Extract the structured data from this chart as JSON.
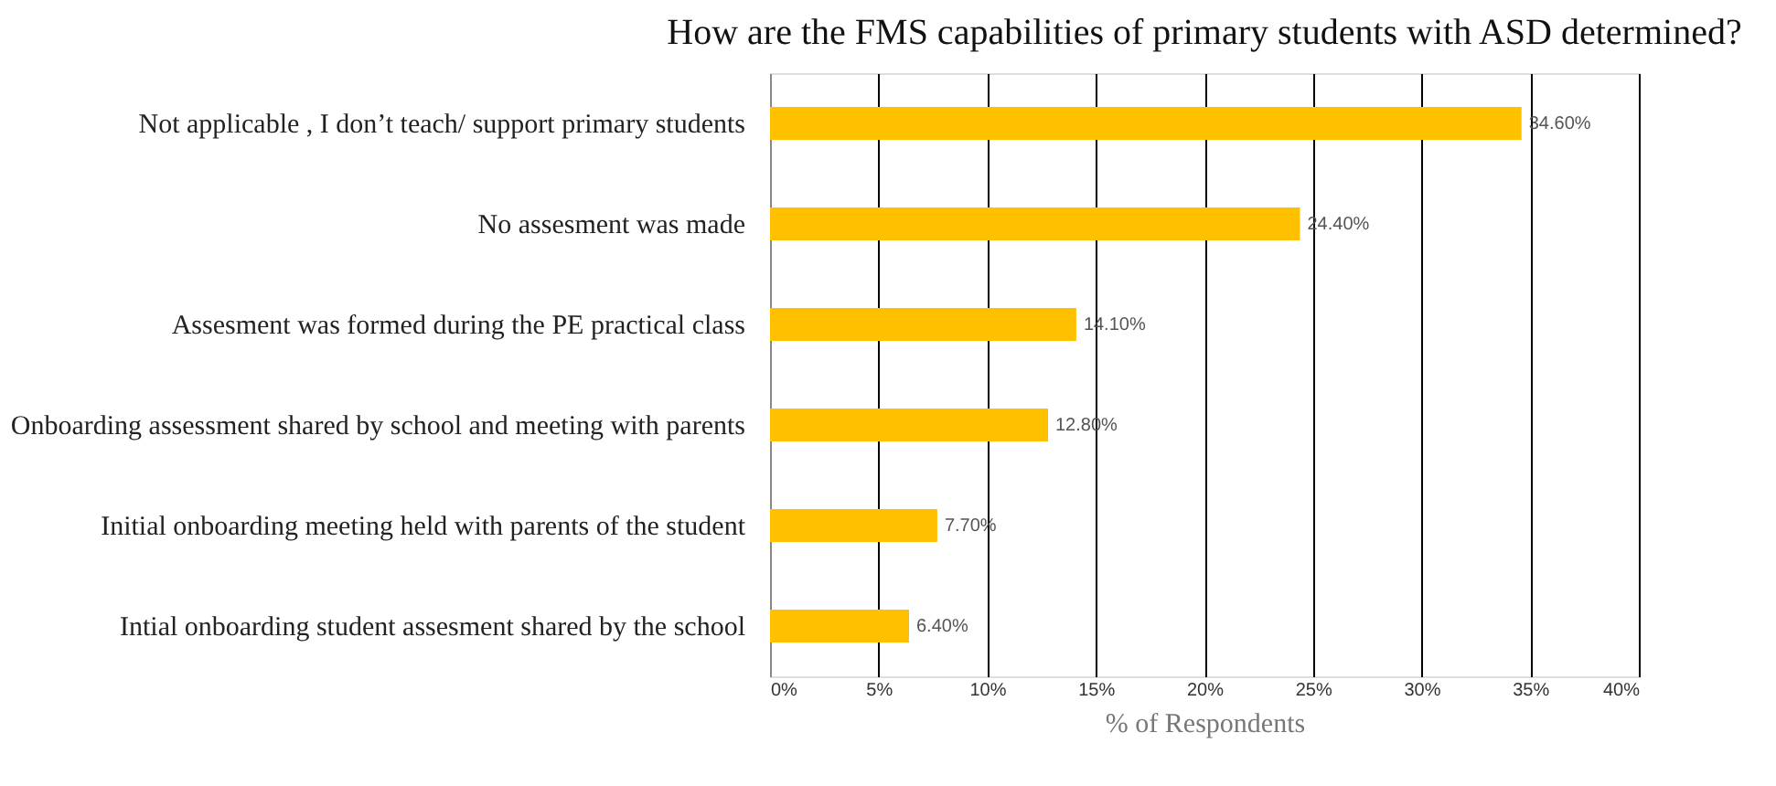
{
  "chart_data": {
    "type": "bar",
    "orientation": "horizontal",
    "title": "How are the FMS capabilities of primary students with ASD determined?",
    "xlabel": "% of Respondents",
    "categories": [
      "Not applicable , I don’t teach/ support primary students",
      "No assesment was made",
      "Assesment was formed during the PE practical class",
      "Onboarding assessment shared by school and meeting with parents",
      "Initial onboarding meeting held with parents of the student",
      "Intial onboarding student assesment shared by the school"
    ],
    "values": [
      34.6,
      24.4,
      14.1,
      12.8,
      7.7,
      6.4
    ],
    "value_labels": [
      "34.60%",
      "24.40%",
      "14.10%",
      "12.80%",
      "7.70%",
      "6.40%"
    ],
    "color": "#ffc000",
    "xlim": [
      0,
      40
    ],
    "xticks": [
      {
        "value": 0,
        "label": "0%"
      },
      {
        "value": 5,
        "label": "5%"
      },
      {
        "value": 10,
        "label": "10%"
      },
      {
        "value": 15,
        "label": "15%"
      },
      {
        "value": 20,
        "label": "20%"
      },
      {
        "value": 25,
        "label": "25%"
      },
      {
        "value": 30,
        "label": "30%"
      },
      {
        "value": 35,
        "label": "35%"
      },
      {
        "value": 40,
        "label": "40%"
      }
    ],
    "grid": "x"
  }
}
